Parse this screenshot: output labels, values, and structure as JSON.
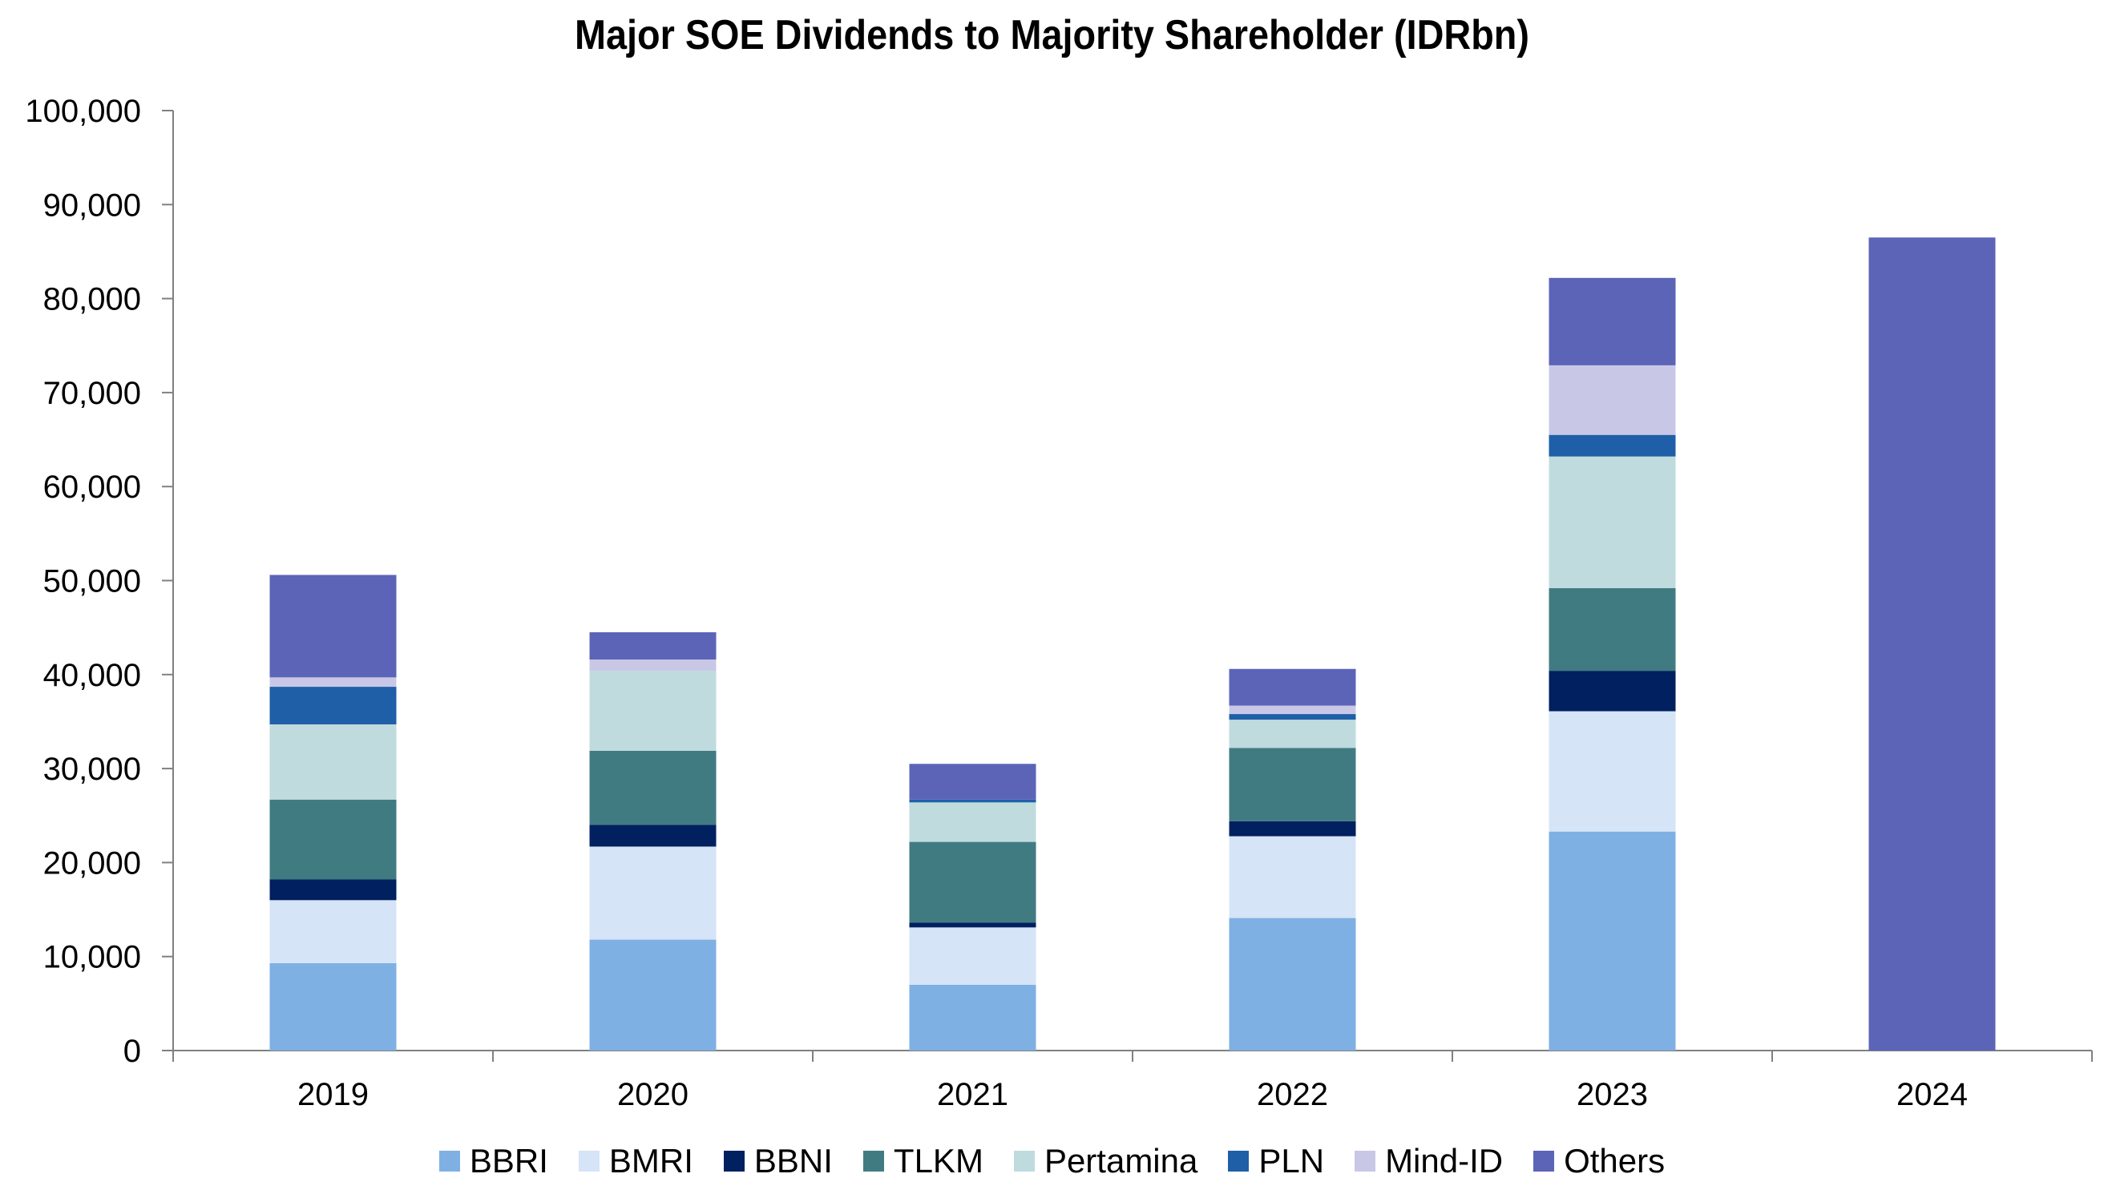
{
  "chart_data": {
    "type": "bar",
    "stacked": true,
    "title": "Major SOE Dividends to Majority Shareholder (IDRbn)",
    "xlabel": "",
    "ylabel": "",
    "categories": [
      "2019",
      "2020",
      "2021",
      "2022",
      "2023",
      "2024"
    ],
    "ylim": [
      0,
      100000
    ],
    "yticks": [
      0,
      10000,
      20000,
      30000,
      40000,
      50000,
      60000,
      70000,
      80000,
      90000,
      100000
    ],
    "ytick_labels": [
      "0",
      "10,000",
      "20,000",
      "30,000",
      "40,000",
      "50,000",
      "60,000",
      "70,000",
      "80,000",
      "90,000",
      "100,000"
    ],
    "grid": false,
    "legend_position": "bottom",
    "series": [
      {
        "name": "BBRI",
        "color": "#7fb0e4",
        "values": [
          9300,
          11800,
          7000,
          14100,
          23300,
          0
        ]
      },
      {
        "name": "BMRI",
        "color": "#d5e4f6",
        "values": [
          6700,
          9900,
          6100,
          8700,
          12800,
          0
        ]
      },
      {
        "name": "BBNI",
        "color": "#002060",
        "values": [
          2200,
          2300,
          500,
          1600,
          4300,
          0
        ]
      },
      {
        "name": "TLKM",
        "color": "#417b82",
        "values": [
          8500,
          7900,
          8600,
          7800,
          8800,
          0
        ]
      },
      {
        "name": "Pertamina",
        "color": "#bfdbde",
        "values": [
          8000,
          8500,
          4200,
          3000,
          14000,
          0
        ]
      },
      {
        "name": "PLN",
        "color": "#1f5fa8",
        "values": [
          4000,
          0,
          300,
          600,
          2300,
          0
        ]
      },
      {
        "name": "Mind-ID",
        "color": "#c8c8e6",
        "values": [
          1000,
          1200,
          0,
          900,
          7400,
          0
        ]
      },
      {
        "name": "Others",
        "color": "#5c64b8",
        "values": [
          10900,
          2900,
          3800,
          3900,
          9300,
          86500
        ]
      }
    ]
  }
}
